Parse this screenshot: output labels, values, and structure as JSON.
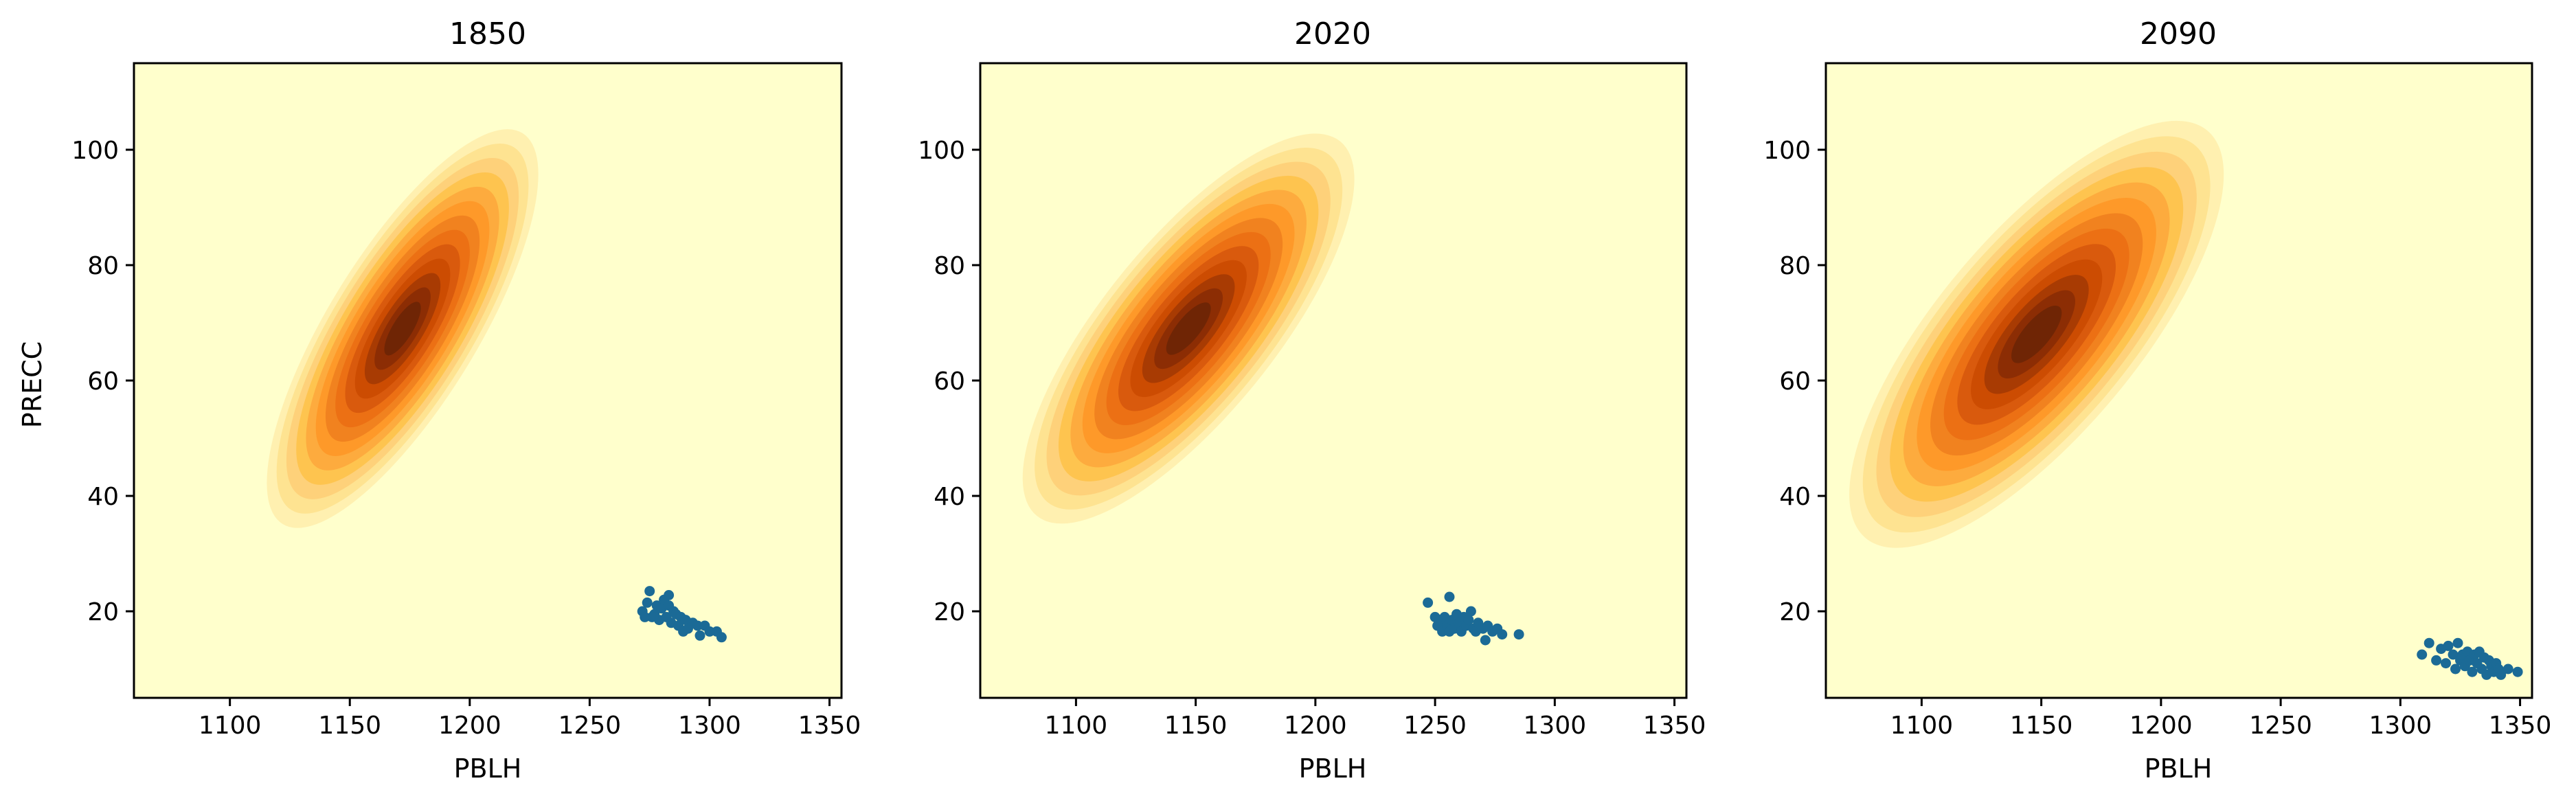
{
  "figure": {
    "panels": [
      {
        "title": "1850",
        "xlabel": "PBLH",
        "ylabel": "PRECC",
        "xlim": [
          1060,
          1355
        ],
        "ylim": [
          5,
          115
        ],
        "xticks": [
          "1100",
          "1150",
          "1200",
          "1250",
          "1300",
          "1350"
        ],
        "yticks": [
          "20",
          "40",
          "60",
          "80",
          "100"
        ],
        "density": {
          "center": [
            1172,
            69
          ],
          "sigma_major": 13.8,
          "sigma_minor": 4.5,
          "angle_deg": -58.5
        },
        "points": [
          [
            1272,
            20
          ],
          [
            1274,
            21.5
          ],
          [
            1275,
            23.5
          ],
          [
            1277,
            19.5
          ],
          [
            1278,
            21
          ],
          [
            1279,
            18.5
          ],
          [
            1280,
            20.5
          ],
          [
            1281,
            22
          ],
          [
            1282,
            19
          ],
          [
            1283,
            21
          ],
          [
            1283,
            22.8
          ],
          [
            1284,
            18
          ],
          [
            1285,
            20
          ],
          [
            1286,
            19.5
          ],
          [
            1287,
            17.5
          ],
          [
            1288,
            19
          ],
          [
            1289,
            16.5
          ],
          [
            1290,
            18.5
          ],
          [
            1291,
            17
          ],
          [
            1293,
            18
          ],
          [
            1295,
            17.5
          ],
          [
            1296,
            15.8
          ],
          [
            1298,
            17.5
          ],
          [
            1300,
            16.5
          ],
          [
            1303,
            16.5
          ],
          [
            1305,
            15.5
          ],
          [
            1276,
            19
          ],
          [
            1273,
            19
          ]
        ]
      },
      {
        "title": "2020",
        "xlabel": "PBLH",
        "ylabel": "",
        "xlim": [
          1060,
          1355
        ],
        "ylim": [
          5,
          115
        ],
        "xticks": [
          "1100",
          "1150",
          "1200",
          "1250",
          "1300",
          "1350"
        ],
        "yticks": [
          "20",
          "40",
          "60",
          "80",
          "100"
        ],
        "density": {
          "center": [
            1147,
            69
          ],
          "sigma_major": 14.5,
          "sigma_minor": 5.2,
          "angle_deg": -51
        },
        "points": [
          [
            1247,
            21.5
          ],
          [
            1250,
            19
          ],
          [
            1251,
            17.5
          ],
          [
            1252,
            18.5
          ],
          [
            1253,
            16.5
          ],
          [
            1254,
            19
          ],
          [
            1255,
            17.5
          ],
          [
            1256,
            22.5
          ],
          [
            1256,
            16.5
          ],
          [
            1257,
            18.5
          ],
          [
            1258,
            17
          ],
          [
            1259,
            19.5
          ],
          [
            1260,
            18
          ],
          [
            1261,
            16.5
          ],
          [
            1262,
            19
          ],
          [
            1263,
            17.5
          ],
          [
            1264,
            18.5
          ],
          [
            1265,
            20
          ],
          [
            1266,
            17
          ],
          [
            1267,
            16.5
          ],
          [
            1268,
            18
          ],
          [
            1270,
            17
          ],
          [
            1271,
            15
          ],
          [
            1272,
            17.5
          ],
          [
            1274,
            16.5
          ],
          [
            1276,
            17
          ],
          [
            1278,
            16
          ],
          [
            1285,
            16
          ]
        ]
      },
      {
        "title": "2090",
        "xlabel": "PBLH",
        "ylabel": "",
        "xlim": [
          1060,
          1355
        ],
        "ylim": [
          5,
          115
        ],
        "xticks": [
          "1100",
          "1150",
          "1200",
          "1250",
          "1300",
          "1350"
        ],
        "yticks": [
          "20",
          "40",
          "60",
          "80",
          "100"
        ],
        "density": {
          "center": [
            1148,
            68
          ],
          "sigma_major": 16,
          "sigma_minor": 6,
          "angle_deg": -50
        },
        "points": [
          [
            1309,
            12.5
          ],
          [
            1312,
            14.5
          ],
          [
            1315,
            11.5
          ],
          [
            1317,
            13.5
          ],
          [
            1319,
            11
          ],
          [
            1320,
            14
          ],
          [
            1322,
            12.5
          ],
          [
            1323,
            10
          ],
          [
            1324,
            14.5
          ],
          [
            1325,
            11.5
          ],
          [
            1326,
            12.5
          ],
          [
            1327,
            10.5
          ],
          [
            1328,
            13
          ],
          [
            1329,
            11.5
          ],
          [
            1330,
            9.5
          ],
          [
            1331,
            12.5
          ],
          [
            1332,
            11
          ],
          [
            1333,
            13
          ],
          [
            1334,
            10
          ],
          [
            1335,
            12
          ],
          [
            1336,
            9
          ],
          [
            1337,
            11.5
          ],
          [
            1338,
            10.5
          ],
          [
            1339,
            9.5
          ],
          [
            1340,
            11
          ],
          [
            1341,
            10
          ],
          [
            1342,
            9
          ],
          [
            1345,
            10
          ],
          [
            1349,
            9.5
          ]
        ]
      }
    ]
  },
  "chart_data": [
    {
      "type": "scatter",
      "title": "1850",
      "xlabel": "PBLH",
      "ylabel": "PRECC",
      "xlim": [
        1060,
        1355
      ],
      "ylim": [
        5,
        115
      ],
      "density_overlay": "filled KDE contours",
      "series": [
        {
          "x": [
            1272,
            1274,
            1275,
            1277,
            1278,
            1279,
            1280,
            1281,
            1282,
            1283,
            1283,
            1284,
            1285,
            1286,
            1287,
            1288,
            1289,
            1290,
            1291,
            1293,
            1295,
            1296,
            1298,
            1300,
            1303,
            1305,
            1276,
            1273
          ],
          "y": [
            20,
            21.5,
            23.5,
            19.5,
            21,
            18.5,
            20.5,
            22,
            19,
            21,
            22.8,
            18,
            20,
            19.5,
            17.5,
            19,
            16.5,
            18.5,
            17,
            18,
            17.5,
            15.8,
            17.5,
            16.5,
            16.5,
            15.5,
            19,
            19
          ]
        }
      ]
    },
    {
      "type": "scatter",
      "title": "2020",
      "xlabel": "PBLH",
      "ylabel": "",
      "xlim": [
        1060,
        1355
      ],
      "ylim": [
        5,
        115
      ],
      "density_overlay": "filled KDE contours",
      "series": [
        {
          "x": [
            1247,
            1250,
            1251,
            1252,
            1253,
            1254,
            1255,
            1256,
            1256,
            1257,
            1258,
            1259,
            1260,
            1261,
            1262,
            1263,
            1264,
            1265,
            1266,
            1267,
            1268,
            1270,
            1271,
            1272,
            1274,
            1276,
            1278,
            1285
          ],
          "y": [
            21.5,
            19,
            17.5,
            18.5,
            16.5,
            19,
            17.5,
            22.5,
            16.5,
            18.5,
            17,
            19.5,
            18,
            16.5,
            19,
            17.5,
            18.5,
            20,
            17,
            16.5,
            18,
            17,
            15,
            17.5,
            16.5,
            17,
            16,
            16
          ]
        }
      ]
    },
    {
      "type": "scatter",
      "title": "2090",
      "xlabel": "PBLH",
      "ylabel": "",
      "xlim": [
        1060,
        1355
      ],
      "ylim": [
        5,
        115
      ],
      "density_overlay": "filled KDE contours",
      "series": [
        {
          "x": [
            1309,
            1312,
            1315,
            1317,
            1319,
            1320,
            1322,
            1323,
            1324,
            1325,
            1326,
            1327,
            1328,
            1329,
            1330,
            1331,
            1332,
            1333,
            1334,
            1335,
            1336,
            1337,
            1338,
            1339,
            1340,
            1341,
            1342,
            1345,
            1349
          ],
          "y": [
            12.5,
            14.5,
            11.5,
            13.5,
            11,
            14,
            12.5,
            10,
            14.5,
            11.5,
            12.5,
            10.5,
            13,
            11.5,
            9.5,
            12.5,
            11,
            13,
            10,
            12,
            9,
            11.5,
            10.5,
            9.5,
            11,
            10,
            9,
            10,
            9.5
          ]
        }
      ]
    }
  ],
  "colors": {
    "background": "#ffffcc",
    "contours": [
      "#ffffcc",
      "#fff0b0",
      "#fee391",
      "#fed17a",
      "#fec44f",
      "#fdab3e",
      "#fe9929",
      "#f1821f",
      "#ec7014",
      "#d95a0d",
      "#cc4c02",
      "#a83b03",
      "#8c2d04",
      "#6f2505"
    ],
    "points": "#1b6a96",
    "axes": "#000000"
  }
}
